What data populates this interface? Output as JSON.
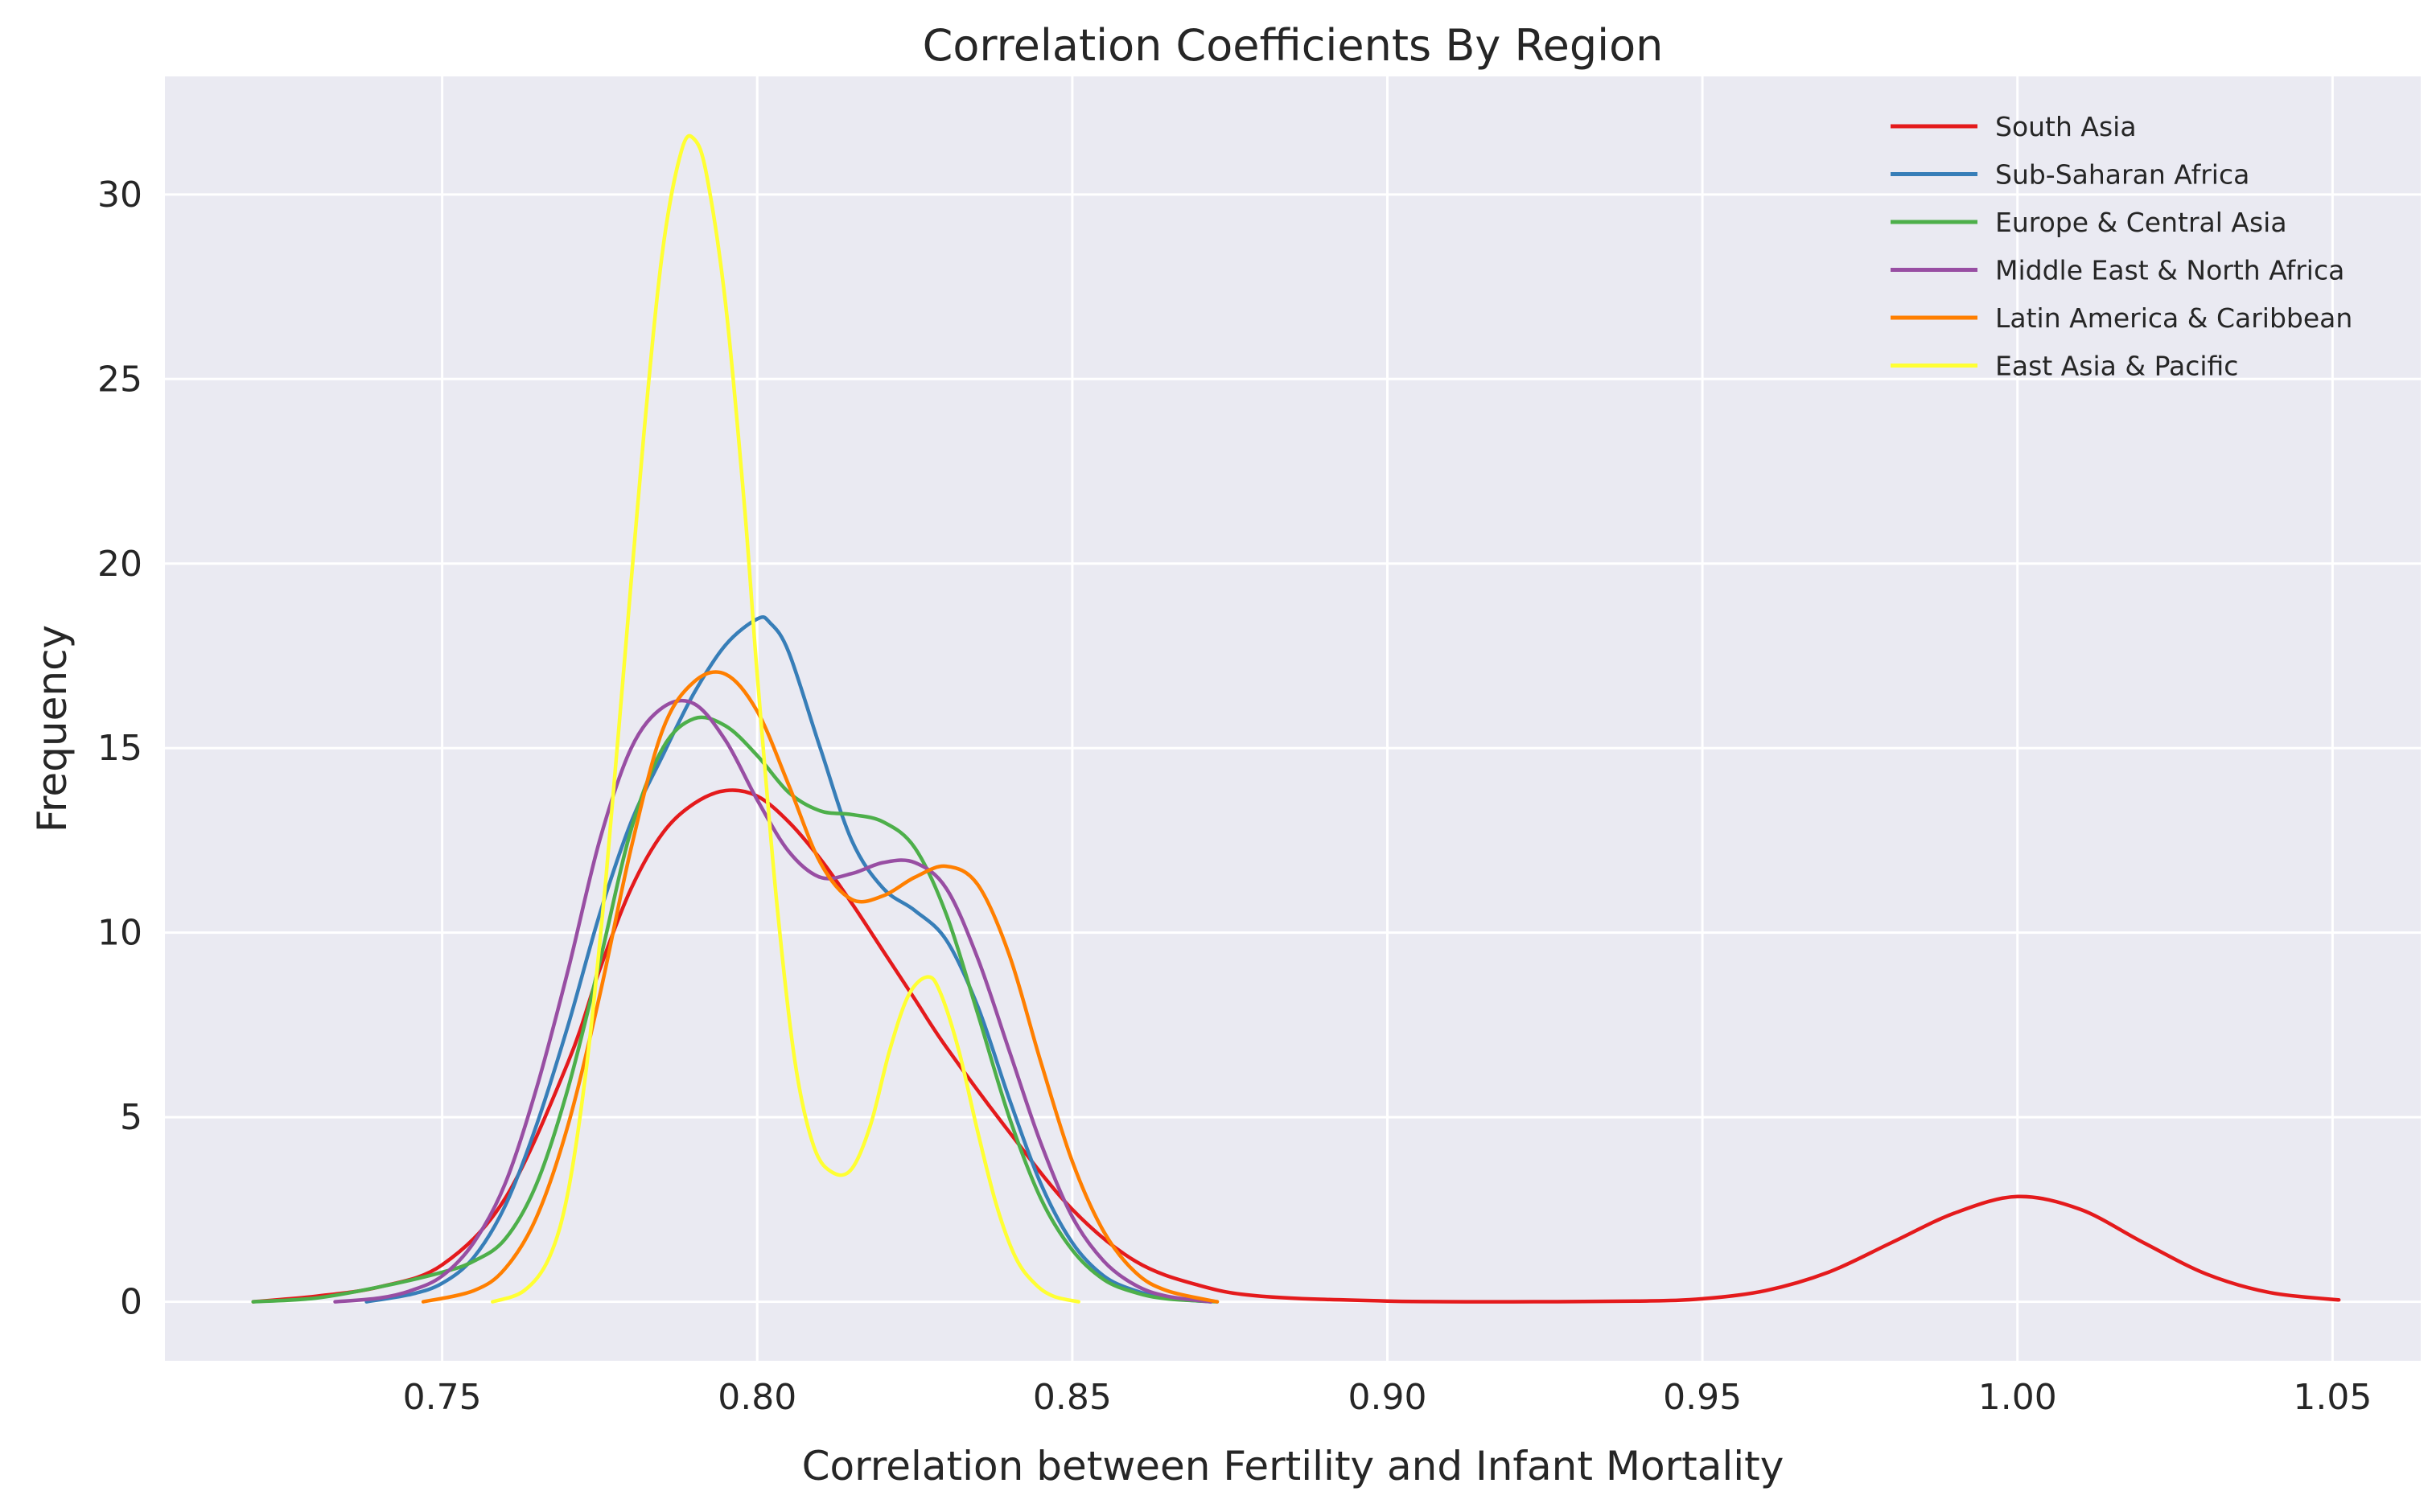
{
  "chart_data": {
    "type": "line",
    "title": "Correlation Coefficients By Region",
    "xlabel": "Correlation between Fertility and Infant Mortality",
    "ylabel": "Frequency",
    "xlim": [
      0.706,
      1.064
    ],
    "ylim": [
      -1.6,
      33.2
    ],
    "xticks": [
      0.75,
      0.8,
      0.85,
      0.9,
      0.95,
      1.0,
      1.05
    ],
    "xtick_labels": [
      "0.75",
      "0.80",
      "0.85",
      "0.90",
      "0.95",
      "1.00",
      "1.05"
    ],
    "yticks": [
      0,
      5,
      10,
      15,
      20,
      25,
      30
    ],
    "ytick_labels": [
      "0",
      "5",
      "10",
      "15",
      "20",
      "25",
      "30"
    ],
    "grid": true,
    "background": "#eaeaf2",
    "legend_position": "top-right",
    "series": [
      {
        "name": "South Asia",
        "color": "#e41a1c",
        "x": [
          0.72,
          0.73,
          0.74,
          0.75,
          0.76,
          0.77,
          0.775,
          0.78,
          0.785,
          0.79,
          0.795,
          0.8,
          0.805,
          0.81,
          0.815,
          0.82,
          0.825,
          0.83,
          0.84,
          0.85,
          0.86,
          0.87,
          0.88,
          0.9,
          0.92,
          0.94,
          0.95,
          0.96,
          0.97,
          0.98,
          0.99,
          1.0,
          1.01,
          1.02,
          1.03,
          1.04,
          1.051
        ],
        "y": [
          0.0,
          0.15,
          0.4,
          1.0,
          2.8,
          6.5,
          9.0,
          11.2,
          12.7,
          13.5,
          13.85,
          13.7,
          13.0,
          12.0,
          10.8,
          9.5,
          8.2,
          6.9,
          4.6,
          2.5,
          1.1,
          0.45,
          0.15,
          0.02,
          0.0,
          0.02,
          0.08,
          0.3,
          0.8,
          1.6,
          2.4,
          2.85,
          2.5,
          1.6,
          0.75,
          0.25,
          0.05
        ]
      },
      {
        "name": "Sub-Saharan Africa",
        "color": "#377eb8",
        "x": [
          0.738,
          0.745,
          0.75,
          0.755,
          0.76,
          0.765,
          0.77,
          0.775,
          0.78,
          0.785,
          0.79,
          0.795,
          0.8,
          0.802,
          0.805,
          0.81,
          0.815,
          0.82,
          0.825,
          0.83,
          0.835,
          0.84,
          0.845,
          0.85,
          0.855,
          0.86,
          0.865,
          0.872
        ],
        "y": [
          0.0,
          0.2,
          0.5,
          1.2,
          2.6,
          4.8,
          7.5,
          10.5,
          13.0,
          14.8,
          16.5,
          17.8,
          18.5,
          18.4,
          17.6,
          15.0,
          12.5,
          11.2,
          10.6,
          9.8,
          8.0,
          5.5,
          3.2,
          1.6,
          0.7,
          0.3,
          0.1,
          0.0
        ]
      },
      {
        "name": "Europe & Central Asia",
        "color": "#4daf4a",
        "x": [
          0.72,
          0.73,
          0.74,
          0.75,
          0.755,
          0.76,
          0.765,
          0.77,
          0.775,
          0.78,
          0.785,
          0.79,
          0.795,
          0.8,
          0.805,
          0.81,
          0.815,
          0.82,
          0.825,
          0.83,
          0.835,
          0.84,
          0.845,
          0.85,
          0.855,
          0.86,
          0.865,
          0.873
        ],
        "y": [
          0.0,
          0.1,
          0.4,
          0.8,
          1.1,
          1.7,
          3.2,
          5.8,
          9.2,
          12.8,
          15.0,
          15.8,
          15.6,
          14.8,
          13.8,
          13.3,
          13.2,
          13.0,
          12.3,
          10.5,
          7.8,
          5.0,
          2.8,
          1.4,
          0.6,
          0.25,
          0.08,
          0.0
        ]
      },
      {
        "name": "Middle East & North Africa",
        "color": "#984ea3",
        "x": [
          0.733,
          0.74,
          0.745,
          0.75,
          0.755,
          0.76,
          0.765,
          0.77,
          0.775,
          0.78,
          0.785,
          0.79,
          0.795,
          0.8,
          0.805,
          0.81,
          0.815,
          0.82,
          0.825,
          0.83,
          0.835,
          0.84,
          0.845,
          0.85,
          0.855,
          0.86,
          0.865,
          0.872
        ],
        "y": [
          0.0,
          0.1,
          0.3,
          0.7,
          1.6,
          3.2,
          5.8,
          9.0,
          12.5,
          15.0,
          16.1,
          16.2,
          15.2,
          13.6,
          12.2,
          11.5,
          11.6,
          11.9,
          11.9,
          11.2,
          9.3,
          6.8,
          4.3,
          2.3,
          1.1,
          0.45,
          0.15,
          0.0
        ]
      },
      {
        "name": "Latin America & Caribbean",
        "color": "#ff7f00",
        "x": [
          0.747,
          0.755,
          0.76,
          0.765,
          0.77,
          0.775,
          0.78,
          0.785,
          0.79,
          0.795,
          0.8,
          0.805,
          0.81,
          0.815,
          0.82,
          0.825,
          0.83,
          0.835,
          0.84,
          0.845,
          0.85,
          0.855,
          0.86,
          0.865,
          0.873
        ],
        "y": [
          0.0,
          0.3,
          0.9,
          2.3,
          4.8,
          8.3,
          12.3,
          15.5,
          16.8,
          17.0,
          16.0,
          14.0,
          11.9,
          10.9,
          11.0,
          11.5,
          11.8,
          11.3,
          9.4,
          6.5,
          3.8,
          1.9,
          0.8,
          0.3,
          0.0
        ]
      },
      {
        "name": "East Asia & Pacific",
        "color": "#ffff33",
        "x": [
          0.758,
          0.763,
          0.767,
          0.77,
          0.773,
          0.776,
          0.779,
          0.782,
          0.785,
          0.788,
          0.79,
          0.792,
          0.795,
          0.798,
          0.8,
          0.803,
          0.806,
          0.809,
          0.812,
          0.815,
          0.818,
          0.821,
          0.824,
          0.827,
          0.829,
          0.832,
          0.835,
          0.838,
          0.841,
          0.844,
          0.847,
          0.851
        ],
        "y": [
          0.0,
          0.3,
          1.2,
          3.0,
          6.5,
          11.5,
          17.5,
          23.5,
          28.5,
          31.2,
          31.5,
          30.5,
          27.0,
          21.5,
          17.0,
          11.0,
          6.5,
          4.2,
          3.5,
          3.6,
          4.8,
          6.8,
          8.3,
          8.8,
          8.4,
          6.8,
          4.6,
          2.6,
          1.2,
          0.5,
          0.15,
          0.0
        ]
      }
    ]
  }
}
